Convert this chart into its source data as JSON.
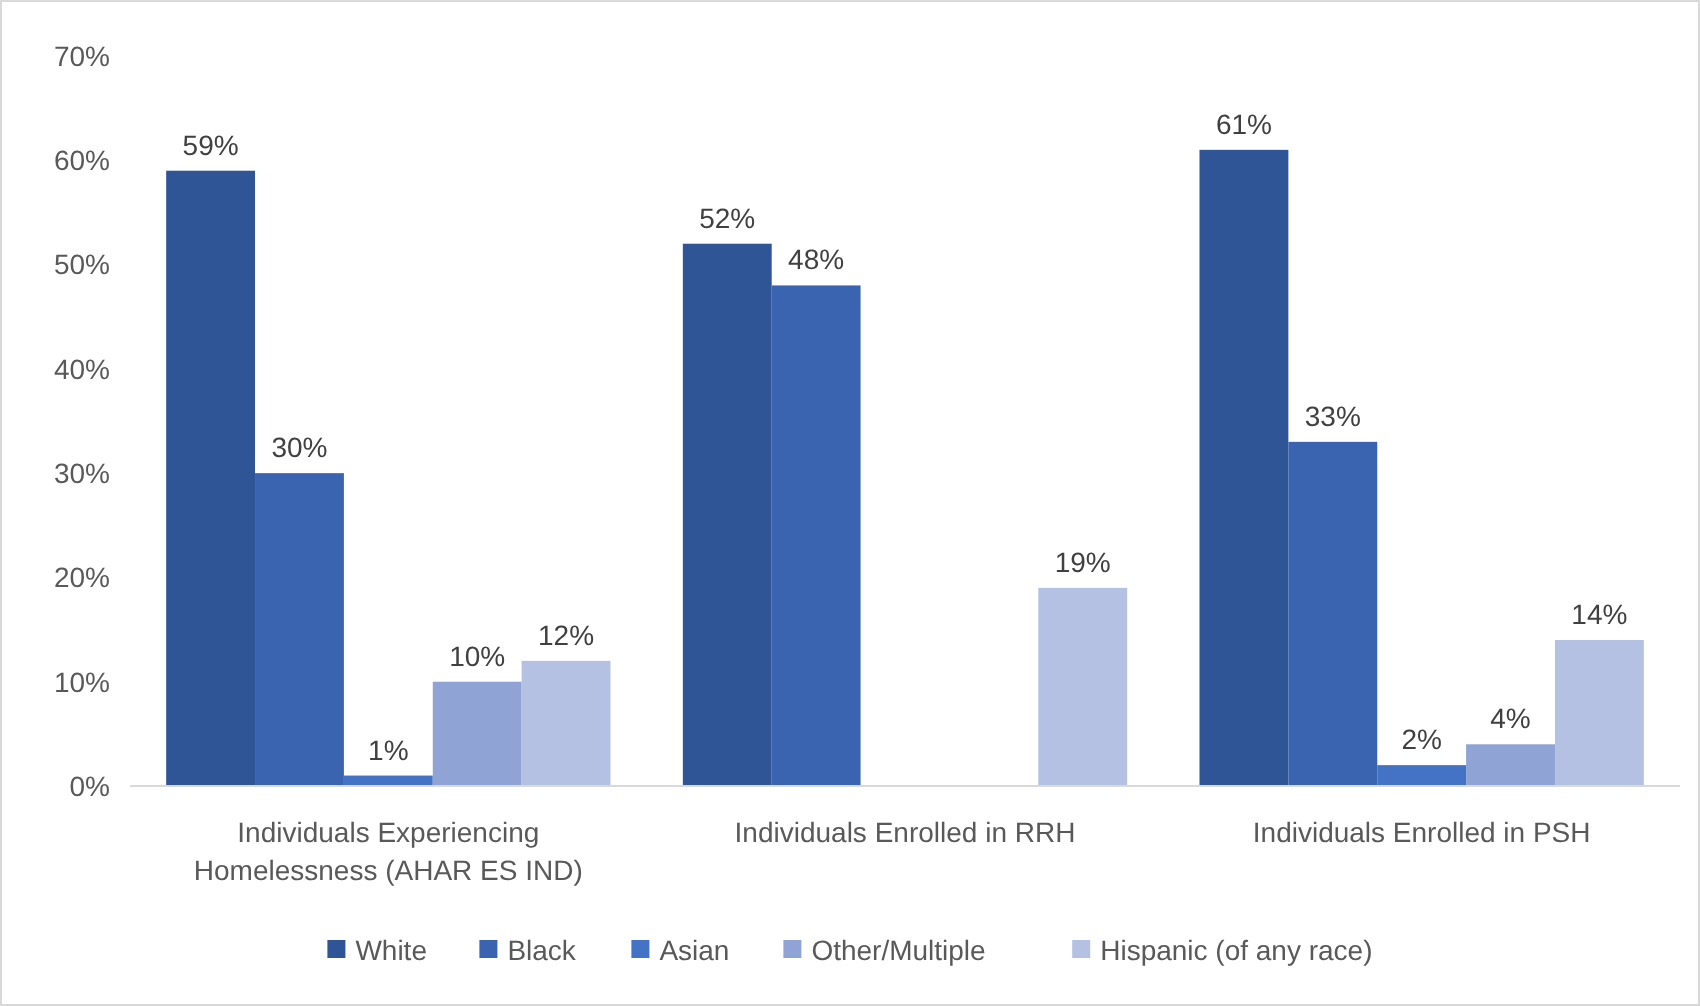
{
  "chart_data": {
    "type": "bar",
    "categories": [
      "Individuals Experiencing Homelessness (AHAR ES IND)",
      "Individuals Enrolled in RRH",
      "Individuals Enrolled in PSH"
    ],
    "series": [
      {
        "name": "White",
        "color": "#2f5597",
        "values": [
          59,
          52,
          61
        ],
        "value_labels": [
          "59%",
          "52%",
          "61%"
        ]
      },
      {
        "name": "Black",
        "color": "#3a63b0",
        "values": [
          30,
          48,
          33
        ],
        "value_labels": [
          "30%",
          "48%",
          "33%"
        ]
      },
      {
        "name": "Asian",
        "color": "#4472c4",
        "values": [
          1,
          null,
          2
        ],
        "value_labels": [
          "1%",
          null,
          "2%"
        ]
      },
      {
        "name": "Other/Multiple",
        "color": "#8fa4d4",
        "values": [
          10,
          null,
          4
        ],
        "value_labels": [
          "10%",
          null,
          "4%"
        ]
      },
      {
        "name": "Hispanic (of any race)",
        "color": "#b4c1e2",
        "values": [
          12,
          19,
          14
        ],
        "value_labels": [
          "12%",
          "19%",
          "14%"
        ]
      }
    ],
    "ylim": [
      0,
      70
    ],
    "yticks": [
      {
        "value": 0,
        "label": "0%"
      },
      {
        "value": 10,
        "label": "10%"
      },
      {
        "value": 20,
        "label": "20%"
      },
      {
        "value": 30,
        "label": "30%"
      },
      {
        "value": 40,
        "label": "40%"
      },
      {
        "value": 50,
        "label": "50%"
      },
      {
        "value": 60,
        "label": "60%"
      },
      {
        "value": 70,
        "label": "70%"
      }
    ],
    "grid": false,
    "legend": "bottom"
  }
}
